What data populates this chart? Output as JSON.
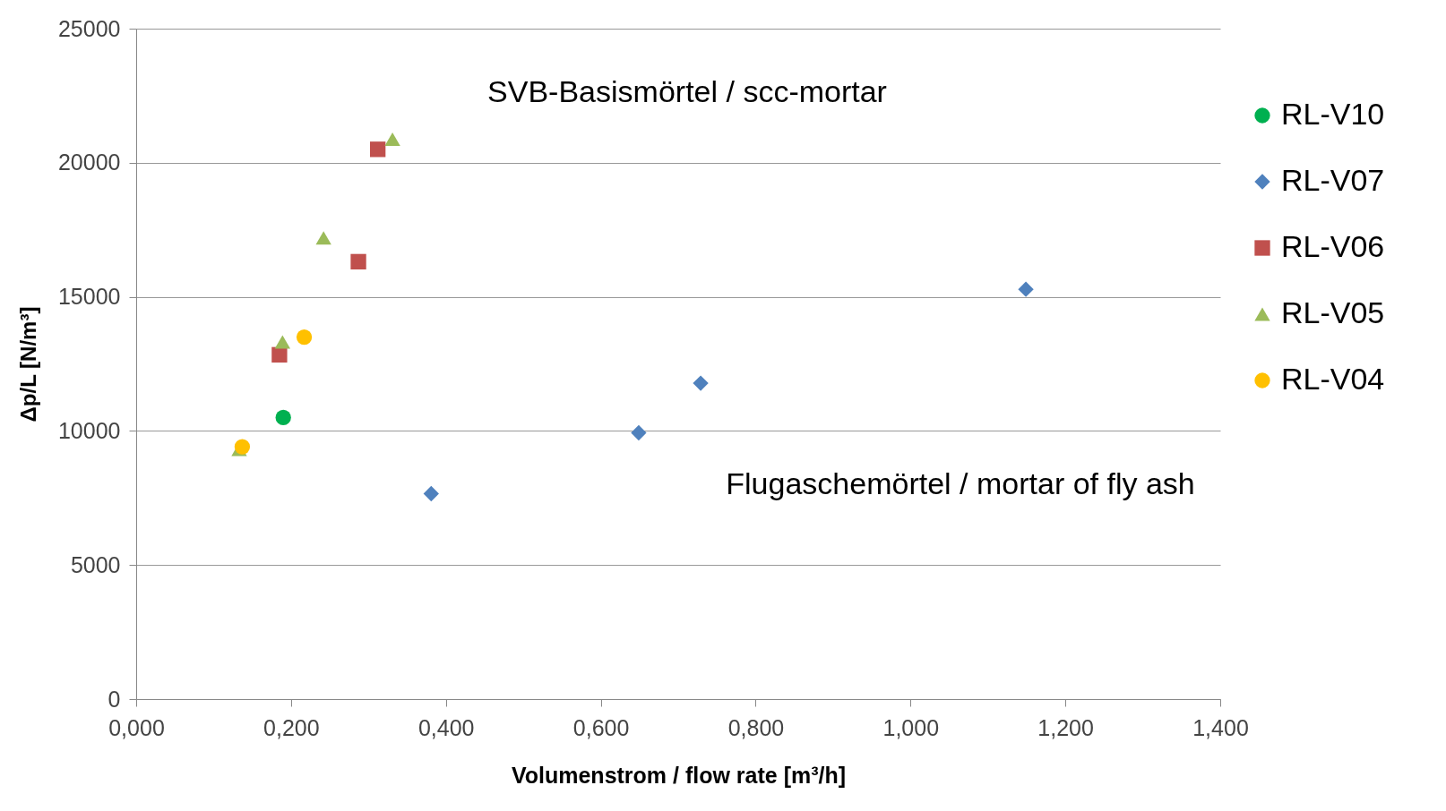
{
  "chart_data": {
    "type": "scatter",
    "xlabel": "Volumenstrom / flow rate [m³/h]",
    "ylabel": "Δp/L [N/m³]",
    "xlim": [
      0,
      1.4
    ],
    "xticks": [
      {
        "value": 0,
        "label": "0,000"
      },
      {
        "value": 0.2,
        "label": "0,200"
      },
      {
        "value": 0.4,
        "label": "0,400"
      },
      {
        "value": 0.6,
        "label": "0,600"
      },
      {
        "value": 0.8,
        "label": "0,800"
      },
      {
        "value": 1.0,
        "label": "1,000"
      },
      {
        "value": 1.2,
        "label": "1,200"
      },
      {
        "value": 1.4,
        "label": "1,400"
      }
    ],
    "ylim": [
      0,
      25000
    ],
    "yticks": [
      0,
      5000,
      10000,
      15000,
      20000,
      25000
    ],
    "grid": "y",
    "legend": "right",
    "series": [
      {
        "name": "RL-V10",
        "color": "#00b050",
        "marker": "circle",
        "x": [
          0.19
        ],
        "values": [
          10500
        ]
      },
      {
        "name": "RL-V07",
        "color": "#4f81bd",
        "marker": "diamond",
        "x": [
          0.381,
          0.649,
          0.729,
          1.149
        ],
        "values": [
          7660,
          9930,
          11780,
          15280
        ]
      },
      {
        "name": "RL-V06",
        "color": "#c0504d",
        "marker": "square",
        "x": [
          0.185,
          0.287,
          0.312
        ],
        "values": [
          12840,
          16310,
          20500
        ]
      },
      {
        "name": "RL-V05",
        "color": "#9bbb59",
        "marker": "triangle",
        "x": [
          0.133,
          0.189,
          0.242,
          0.331
        ],
        "values": [
          9310,
          13320,
          17200,
          20880
        ]
      },
      {
        "name": "RL-V04",
        "color": "#ffc000",
        "marker": "circle",
        "x": [
          0.137,
          0.217
        ],
        "values": [
          9410,
          13500
        ]
      }
    ],
    "annotations": [
      "SVB-Basismörtel / scc-mortar",
      "Flugaschemörtel / mortar of fly ash"
    ]
  }
}
